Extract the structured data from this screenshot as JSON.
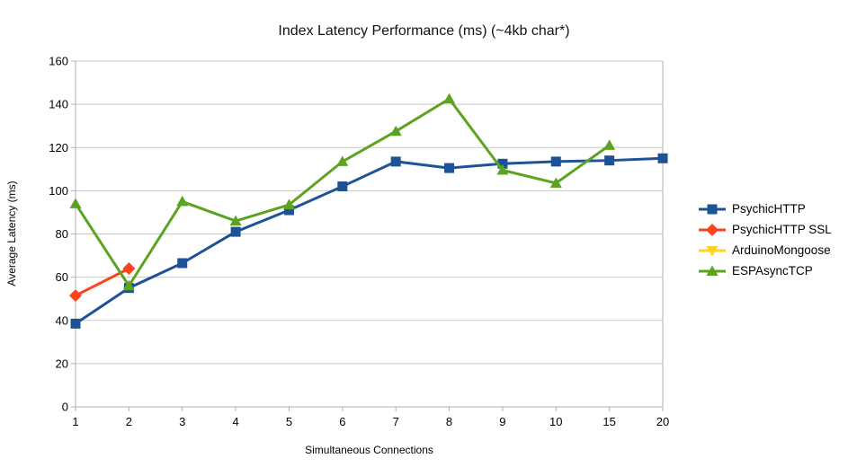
{
  "chart_data": {
    "type": "line",
    "title": "Index Latency Performance (ms) (~4kb char*)",
    "xlabel": "Simultaneous Connections",
    "ylabel": "Average Latency (ms)",
    "categories": [
      "1",
      "2",
      "3",
      "4",
      "5",
      "6",
      "7",
      "8",
      "9",
      "10",
      "15",
      "20"
    ],
    "ylim": [
      0,
      160
    ],
    "ytick_step": 20,
    "ytick_labels": [
      "0",
      "20",
      "40",
      "60",
      "80",
      "100",
      "120",
      "140",
      "160"
    ],
    "grid": "horizontal",
    "legend_position": "right",
    "colors": {
      "grid": "#c9c9c9",
      "axis": "#b0b0b0",
      "text": "#000000"
    },
    "series": [
      {
        "name": "PsychicHTTP",
        "color": "#1d5296",
        "marker": "square",
        "values": [
          38.5,
          55,
          66.5,
          81,
          91,
          102,
          113.5,
          110.5,
          112.5,
          113.5,
          114,
          115
        ]
      },
      {
        "name": "PsychicHTTP SSL",
        "color": "#ff421e",
        "marker": "diamond",
        "values": [
          51.5,
          64,
          null,
          null,
          null,
          null,
          null,
          null,
          null,
          null,
          null,
          null
        ]
      },
      {
        "name": "ArduinoMongoose",
        "color": "#ffd320",
        "marker": "triangle-down",
        "values": [
          null,
          null,
          null,
          null,
          null,
          null,
          null,
          null,
          null,
          null,
          null,
          null
        ]
      },
      {
        "name": "ESPAsyncTCP",
        "color": "#5ba321",
        "marker": "triangle-up",
        "values": [
          94,
          56,
          95,
          86,
          93.5,
          113.5,
          127.5,
          142.5,
          109.5,
          103.5,
          121,
          null
        ]
      }
    ]
  }
}
